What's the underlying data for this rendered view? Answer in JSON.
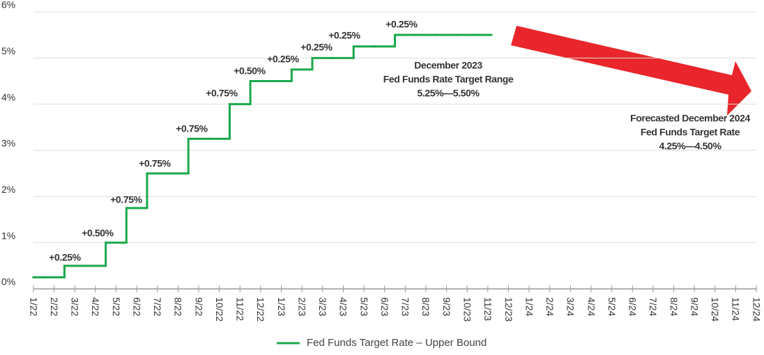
{
  "chart_data": {
    "type": "line",
    "step": "mid",
    "categories": [
      "1/22",
      "2/22",
      "3/22",
      "4/22",
      "5/22",
      "6/22",
      "7/22",
      "8/22",
      "9/22",
      "10/22",
      "11/22",
      "12/22",
      "1/23",
      "2/23",
      "3/23",
      "4/23",
      "5/23",
      "6/23",
      "7/23",
      "8/23",
      "9/23",
      "10/23",
      "11/23",
      "12/23",
      "1/24",
      "2/24",
      "3/24",
      "4/24",
      "5/24",
      "6/24",
      "7/24",
      "8/24",
      "9/24",
      "10/24",
      "11/24",
      "12/24"
    ],
    "series": [
      {
        "name": "Fed Funds Target Rate – Upper Bound",
        "color": "#1aa84a",
        "values": [
          0.25,
          0.25,
          0.5,
          0.5,
          1.0,
          1.75,
          2.5,
          2.5,
          3.25,
          3.25,
          4.0,
          4.5,
          4.5,
          4.75,
          5.0,
          5.0,
          5.25,
          5.25,
          5.5,
          5.5,
          5.5,
          5.5,
          5.5,
          null,
          null,
          null,
          null,
          null,
          null,
          null,
          null,
          null,
          null,
          null,
          null,
          null
        ]
      }
    ],
    "ylim": [
      0,
      6
    ],
    "yticks": [
      {
        "value": 0,
        "label": "0%"
      },
      {
        "value": 1,
        "label": "1%"
      },
      {
        "value": 2,
        "label": "2%"
      },
      {
        "value": 3,
        "label": "3%"
      },
      {
        "value": 4,
        "label": "4%"
      },
      {
        "value": 5,
        "label": "5%"
      },
      {
        "value": 6,
        "label": "6%"
      }
    ],
    "grid": true,
    "legend": "bottom",
    "annotations": [
      "+0.25%",
      "+0.50%",
      "+0.75%",
      "+0.75%",
      "+0.75%",
      "+0.75%",
      "+0.50%",
      "+0.25%",
      "+0.25%",
      "+0.25%",
      "+0.25%"
    ],
    "notes": [
      {
        "lines": [
          "December 2023",
          "Fed Funds Rate Target Range",
          "5.25%—5.50%"
        ],
        "color": "#333333"
      },
      {
        "lines": [
          "Forecasted December 2024",
          "Fed Funds Target Rate",
          "4.25%—4.50%"
        ],
        "color": "#1b75bb"
      }
    ]
  }
}
